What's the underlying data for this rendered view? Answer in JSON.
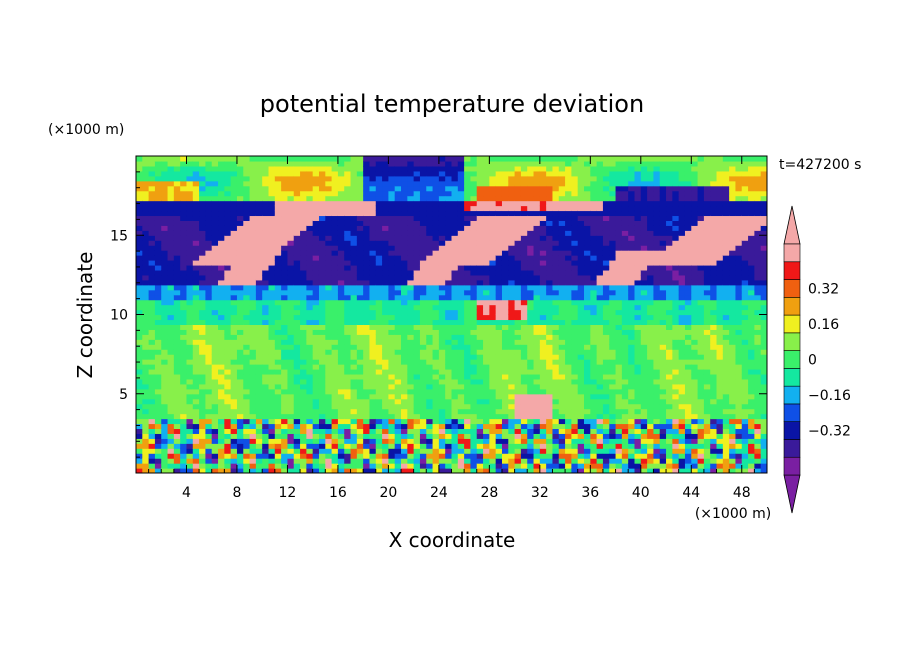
{
  "chart_data": {
    "type": "heatmap",
    "title": "potential temperature deviation",
    "xlabel": "X coordinate",
    "ylabel": "Z coordinate",
    "x_unit": "(×1000 m)",
    "y_unit": "(×1000 m)",
    "time_label": "t=427200 s",
    "xlim": [
      0,
      50
    ],
    "ylim": [
      0,
      20
    ],
    "x_ticks": [
      "4",
      "8",
      "12",
      "16",
      "20",
      "24",
      "28",
      "32",
      "36",
      "40",
      "44",
      "48"
    ],
    "x_tick_values": [
      4,
      8,
      12,
      16,
      20,
      24,
      28,
      32,
      36,
      40,
      44,
      48
    ],
    "y_ticks": [
      "5",
      "10",
      "15"
    ],
    "y_tick_values": [
      5,
      10,
      15
    ],
    "colorbar": {
      "levels": [
        -0.48,
        -0.4,
        -0.32,
        -0.24,
        -0.16,
        -0.08,
        0,
        0.08,
        0.16,
        0.24,
        0.32,
        0.4,
        0.48
      ],
      "colors": [
        "#7a1fa2",
        "#3a1a9a",
        "#0a14a6",
        "#0f50e6",
        "#12b0f0",
        "#14e8a0",
        "#3af06a",
        "#88f04a",
        "#f0f020",
        "#f0a010",
        "#f06010",
        "#f01818",
        "#f4a8a8"
      ],
      "labels": [
        "0.32",
        "0.16",
        "0",
        "−0.16",
        "−0.32"
      ],
      "label_values": [
        0.32,
        0.16,
        0,
        -0.16,
        -0.32
      ],
      "over_color": "#f4a8a8",
      "under_color": "#7a1fa2"
    }
  }
}
